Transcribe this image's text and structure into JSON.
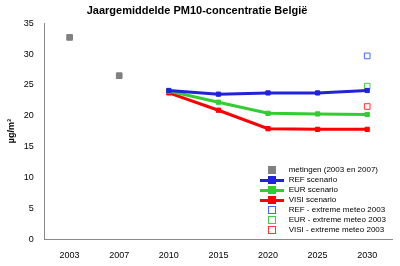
{
  "chart_data": {
    "type": "line",
    "title": "Jaargemiddelde PM10-concentratie België",
    "y_label": "µg/m³",
    "categories": [
      "2003",
      "2007",
      "2010",
      "2015",
      "2020",
      "2025",
      "2030"
    ],
    "series": [
      {
        "name": "metingen (2003 en 2007)",
        "color": "#808080",
        "marker": "square",
        "line_style": "none",
        "values": [
          32.7,
          26.5,
          null,
          null,
          null,
          null,
          null
        ]
      },
      {
        "name": "REF scenario",
        "color": "#2222dd",
        "marker": "square",
        "line_style": "solid",
        "values": [
          null,
          null,
          24.1,
          23.5,
          23.7,
          23.7,
          24.1
        ]
      },
      {
        "name": "EUR scenario",
        "color": "#33cc33",
        "marker": "square",
        "line_style": "solid",
        "values": [
          null,
          null,
          24.0,
          22.2,
          20.4,
          20.3,
          20.2
        ]
      },
      {
        "name": "VISI scenario",
        "color": "#ff0000",
        "marker": "square",
        "line_style": "solid",
        "values": [
          null,
          null,
          23.7,
          20.9,
          17.9,
          17.8,
          17.8
        ]
      },
      {
        "name": "REF - extreme meteo 2003",
        "color": "#4466ff",
        "marker": "square-open",
        "line_style": "none",
        "values": [
          null,
          null,
          null,
          null,
          null,
          null,
          29.7
        ]
      },
      {
        "name": "EUR - extreme meteo 2003",
        "color": "#44cc44",
        "marker": "square-open",
        "line_style": "none",
        "values": [
          null,
          null,
          null,
          null,
          null,
          null,
          24.8
        ]
      },
      {
        "name": "VISI - extreme meteo 2003",
        "color": "#ff3333",
        "marker": "square-open",
        "line_style": "none",
        "values": [
          null,
          null,
          null,
          null,
          null,
          null,
          21.5
        ]
      }
    ],
    "ylim": [
      0,
      35
    ],
    "yticks": [
      0,
      5,
      10,
      15,
      20,
      25,
      30,
      35
    ],
    "grid": false,
    "legend": "lower right"
  }
}
